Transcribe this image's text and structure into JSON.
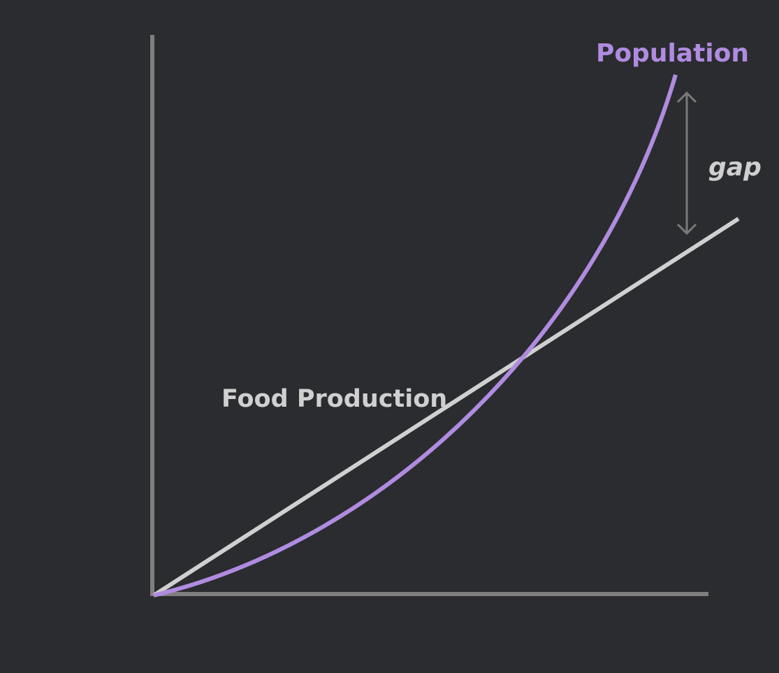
{
  "labels": {
    "population": "Population",
    "food_production": "Food Production",
    "gap": "gap"
  }
}
